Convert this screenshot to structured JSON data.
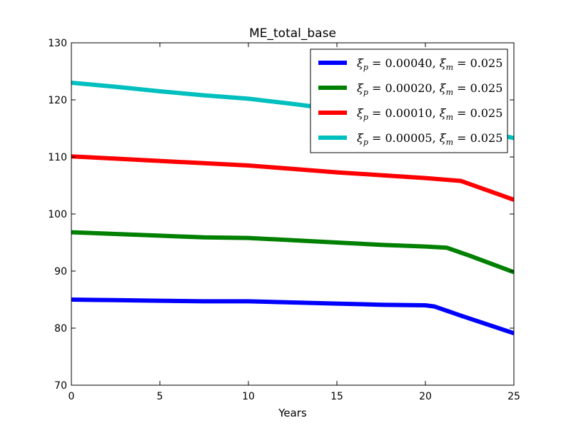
{
  "chart_data": {
    "type": "line",
    "title": "ME_total_base",
    "xlabel": "Years",
    "ylabel": "",
    "xlim": [
      0,
      25
    ],
    "ylim": [
      70,
      130
    ],
    "xticks": [
      0,
      5,
      10,
      15,
      20,
      25
    ],
    "yticks": [
      70,
      80,
      90,
      100,
      110,
      120,
      130
    ],
    "xtick_labels": [
      "0",
      "5",
      "10",
      "15",
      "20",
      "25"
    ],
    "ytick_labels": [
      "70",
      "80",
      "90",
      "100",
      "110",
      "120",
      "130"
    ],
    "grid": false,
    "legend_position": "top-right",
    "series": [
      {
        "name": "ξp = 0.00040, ξm = 0.025",
        "color": "#0000ff",
        "x": [
          0,
          2.5,
          5,
          7.5,
          10,
          12.5,
          15,
          17.5,
          20,
          20.5,
          22,
          25
        ],
        "y": [
          85.0,
          84.9,
          84.8,
          84.7,
          84.7,
          84.5,
          84.3,
          84.1,
          84.0,
          83.8,
          82.2,
          79.1
        ]
      },
      {
        "name": "ξp = 0.00020, ξm = 0.025",
        "color": "#008000",
        "x": [
          0,
          2.5,
          5,
          7.5,
          10,
          12.5,
          15,
          17.5,
          20,
          21.2,
          22.5,
          25
        ],
        "y": [
          96.8,
          96.5,
          96.2,
          95.9,
          95.8,
          95.4,
          95.0,
          94.6,
          94.3,
          94.1,
          92.7,
          89.8
        ]
      },
      {
        "name": "ξp = 0.00010, ξm = 0.025",
        "color": "#ff0000",
        "x": [
          0,
          2.5,
          5,
          7.5,
          10,
          12.5,
          15,
          17.5,
          20,
          22,
          25
        ],
        "y": [
          110.1,
          109.7,
          109.3,
          108.9,
          108.5,
          107.9,
          107.3,
          106.8,
          106.3,
          105.8,
          102.5
        ]
      },
      {
        "name": "ξp = 0.00005, ξm = 0.025",
        "color": "#00bfbf",
        "x": [
          0,
          2.5,
          5,
          7.5,
          10,
          12.5,
          15,
          17.5,
          20,
          22.5,
          25
        ],
        "y": [
          123.0,
          122.3,
          121.5,
          120.8,
          120.2,
          119.3,
          118.3,
          117.3,
          116.2,
          114.9,
          113.3
        ]
      }
    ],
    "legend": [
      {
        "symbol": "ξ",
        "sub1": "p",
        "val1": " = 0.00040, ",
        "symbol2": "ξ",
        "sub2": "m",
        "val2": " = 0.025"
      },
      {
        "symbol": "ξ",
        "sub1": "p",
        "val1": " = 0.00020, ",
        "symbol2": "ξ",
        "sub2": "m",
        "val2": " = 0.025"
      },
      {
        "symbol": "ξ",
        "sub1": "p",
        "val1": " = 0.00010, ",
        "symbol2": "ξ",
        "sub2": "m",
        "val2": " = 0.025"
      },
      {
        "symbol": "ξ",
        "sub1": "p",
        "val1": " = 0.00005, ",
        "symbol2": "ξ",
        "sub2": "m",
        "val2": " = 0.025"
      }
    ]
  }
}
